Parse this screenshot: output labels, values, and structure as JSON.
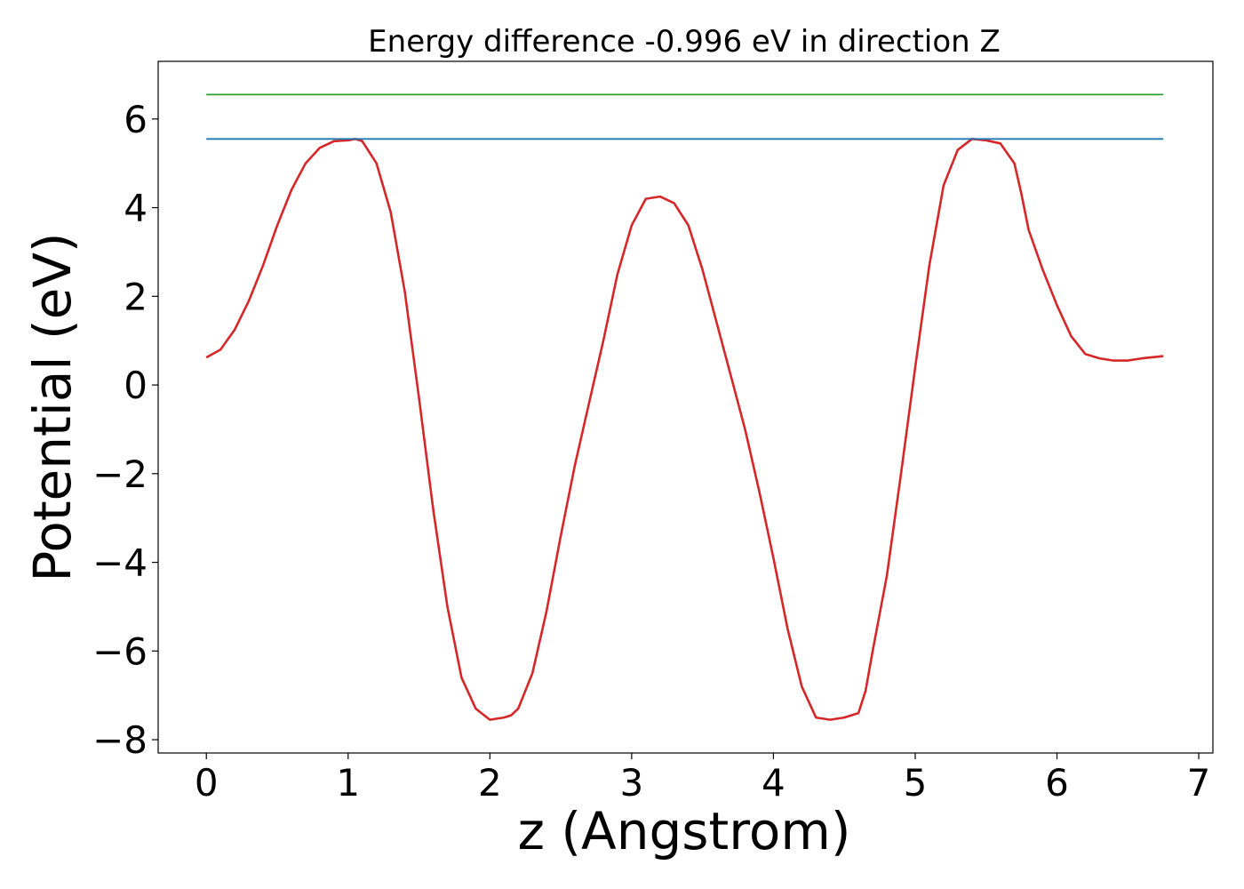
{
  "chart_data": {
    "type": "line",
    "title": "Energy difference -0.996 eV in direction Z",
    "xlabel": "z (Angstrom)",
    "ylabel": "Potential (eV)",
    "xlim": [
      -0.34,
      7.1
    ],
    "ylim": [
      -8.3,
      7.3
    ],
    "xticks": [
      0,
      1,
      2,
      3,
      4,
      5,
      6,
      7
    ],
    "yticks": [
      -8,
      -6,
      -4,
      -2,
      0,
      2,
      4,
      6
    ],
    "grid": false,
    "legend": "none",
    "series": [
      {
        "color": "#d62728",
        "x": [
          0,
          0.1,
          0.2,
          0.3,
          0.4,
          0.5,
          0.6,
          0.7,
          0.8,
          0.9,
          1.0,
          1.05,
          1.1,
          1.2,
          1.3,
          1.4,
          1.5,
          1.6,
          1.7,
          1.8,
          1.9,
          2.0,
          2.1,
          2.15,
          2.2,
          2.3,
          2.4,
          2.5,
          2.6,
          2.7,
          2.8,
          2.9,
          3.0,
          3.1,
          3.2,
          3.3,
          3.4,
          3.5,
          3.6,
          3.7,
          3.8,
          3.9,
          4.0,
          4.1,
          4.2,
          4.3,
          4.4,
          4.5,
          4.6,
          4.65,
          4.7,
          4.8,
          4.9,
          5.0,
          5.1,
          5.2,
          5.3,
          5.4,
          5.5,
          5.6,
          5.7,
          5.75,
          5.8,
          5.9,
          6.0,
          6.1,
          6.2,
          6.3,
          6.4,
          6.5,
          6.6,
          6.75
        ],
        "y": [
          0.62,
          0.8,
          1.25,
          1.9,
          2.7,
          3.6,
          4.4,
          5.0,
          5.35,
          5.5,
          5.52,
          5.55,
          5.5,
          5.0,
          3.9,
          2.1,
          -0.3,
          -2.8,
          -5.0,
          -6.6,
          -7.3,
          -7.55,
          -7.5,
          -7.45,
          -7.3,
          -6.5,
          -5.1,
          -3.4,
          -1.8,
          -0.4,
          1.0,
          2.5,
          3.6,
          4.2,
          4.25,
          4.1,
          3.6,
          2.6,
          1.4,
          0.2,
          -1.0,
          -2.4,
          -3.9,
          -5.5,
          -6.8,
          -7.5,
          -7.55,
          -7.5,
          -7.4,
          -6.9,
          -6.0,
          -4.3,
          -2.0,
          0.4,
          2.7,
          4.5,
          5.3,
          5.55,
          5.52,
          5.45,
          5.0,
          4.3,
          3.5,
          2.6,
          1.8,
          1.1,
          0.7,
          0.6,
          0.55,
          0.55,
          0.6,
          0.65
        ]
      },
      {
        "color": "#1f77b4",
        "x": [
          0,
          6.75
        ],
        "y": [
          5.55,
          5.55
        ]
      },
      {
        "color": "#2ca02c",
        "x": [
          0,
          6.75
        ],
        "y": [
          6.55,
          6.55
        ]
      }
    ]
  }
}
